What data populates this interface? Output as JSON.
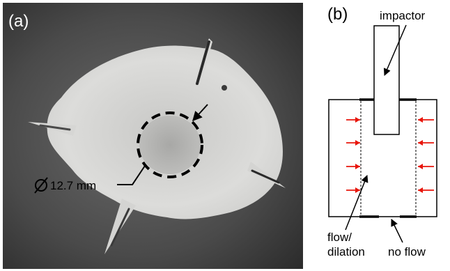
{
  "panel_a": {
    "label": "(a)",
    "diameter_symbol": "Ø",
    "diameter_text": "12.7 mm"
  },
  "panel_b": {
    "label": "(b)",
    "impactor_label": "impactor",
    "flow_label_line1": "flow/",
    "flow_label_line2": "dilation",
    "no_flow_label": "no flow"
  },
  "colors": {
    "pressure_arrows": "#e8160c",
    "photo_background": "#3d3d3d",
    "sample": "#d6d6d4"
  }
}
